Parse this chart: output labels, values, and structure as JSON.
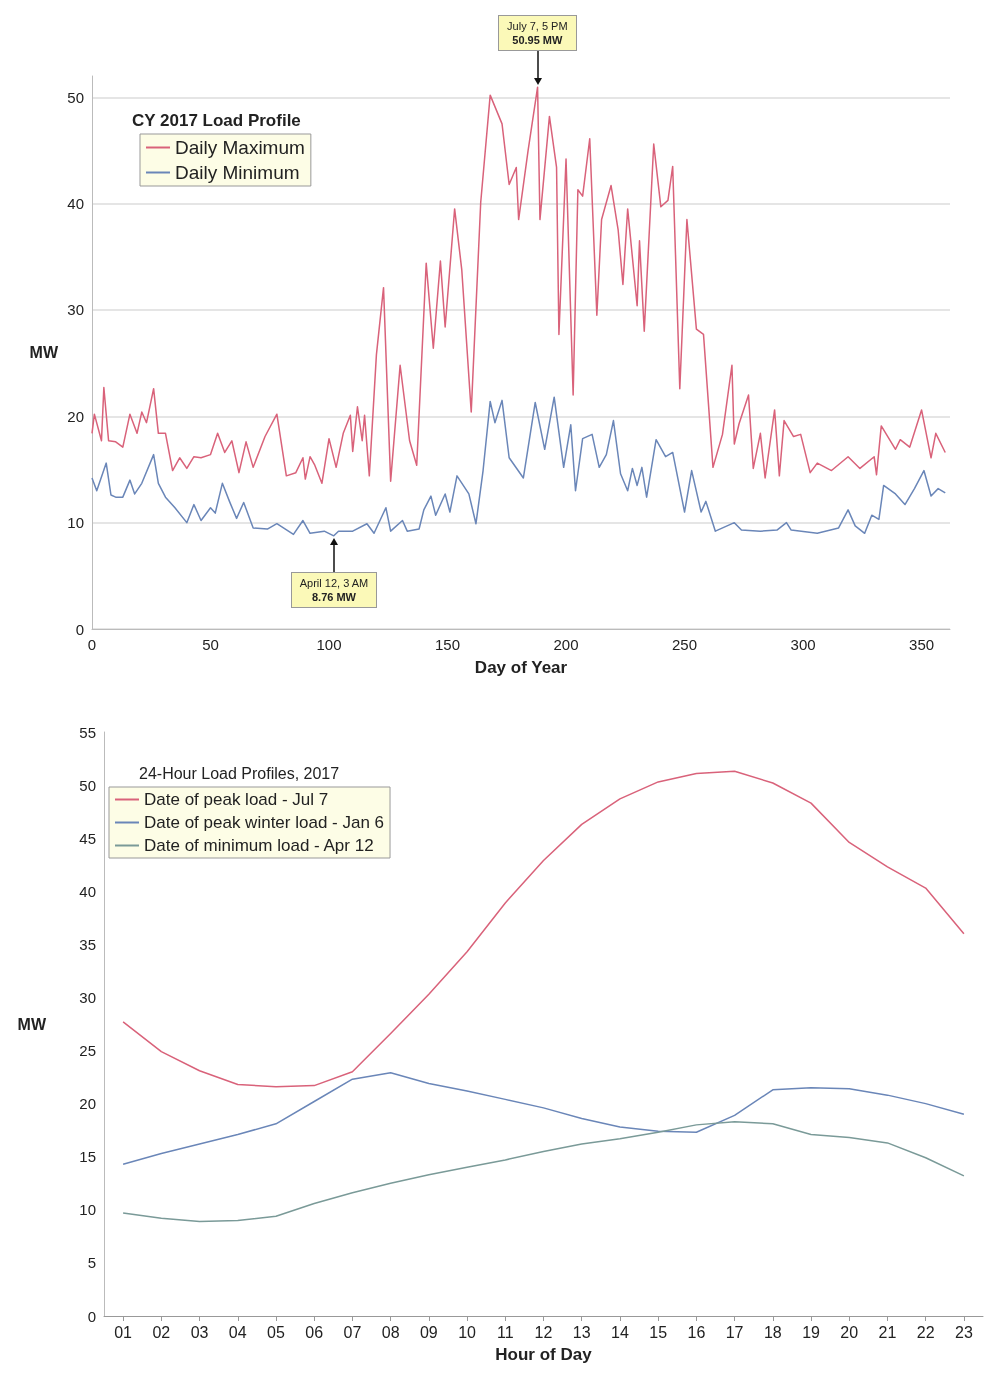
{
  "chart_data": [
    {
      "type": "line",
      "legend_title": "CY 2017 Load Profile",
      "xlabel": "Day of Year",
      "ylabel": "MW",
      "xlim": [
        0,
        362
      ],
      "xticks": [
        0,
        50,
        100,
        150,
        200,
        250,
        300,
        350
      ],
      "ylim": [
        0,
        52
      ],
      "yticks": [
        0,
        10,
        20,
        30,
        40,
        50
      ],
      "grid": "y",
      "legend": "top left",
      "marker": "none",
      "line_style": "solid",
      "annotations": [
        {
          "text": "July 7, 5 PM\n50.95 MW",
          "x": 188,
          "y": 50.95
        },
        {
          "text": "April 12, 3 AM\n8.76 MW",
          "x": 102,
          "y": 8.76
        }
      ],
      "series": [
        {
          "name": "Daily Maximum",
          "color": "#d9627a",
          "x": [
            0,
            1,
            4,
            5,
            7,
            10,
            13,
            16,
            19,
            21,
            23,
            26,
            28,
            31,
            34,
            37,
            40,
            43,
            46,
            50,
            53,
            56,
            59,
            62,
            65,
            68,
            73,
            78,
            82,
            86,
            89,
            90,
            92,
            94,
            97,
            100,
            103,
            106,
            109,
            110,
            112,
            114,
            115,
            117,
            120,
            123,
            126,
            130,
            134,
            137,
            141,
            144,
            147,
            149,
            153,
            156,
            160,
            164,
            168,
            173,
            176,
            179,
            180,
            184,
            188,
            189,
            193,
            196,
            197,
            200,
            203,
            205,
            207,
            210,
            213,
            215,
            219,
            222,
            224,
            226,
            230,
            231,
            233,
            237,
            240,
            243,
            245,
            248,
            251,
            255,
            258,
            262,
            266,
            270,
            271,
            273,
            277,
            279,
            282,
            284,
            288,
            290,
            292,
            296,
            299,
            303,
            306,
            312,
            319,
            324,
            330,
            331,
            333,
            339,
            341,
            345,
            350,
            354,
            356,
            360
          ],
          "values": [
            18.4,
            20.2,
            17.7,
            22.7,
            17.7,
            17.6,
            17.1,
            20.2,
            18.4,
            20.4,
            19.4,
            22.6,
            18.4,
            18.4,
            14.9,
            16.1,
            15.1,
            16.2,
            16.1,
            16.4,
            18.4,
            16.6,
            17.7,
            14.7,
            17.6,
            15.2,
            18.1,
            20.2,
            14.4,
            14.7,
            16.1,
            14.1,
            16.2,
            15.4,
            13.7,
            17.9,
            15.2,
            18.4,
            20.1,
            16.7,
            20.9,
            17.7,
            20.1,
            14.4,
            25.8,
            32.1,
            13.9,
            24.8,
            17.7,
            15.4,
            34.4,
            26.4,
            34.6,
            28.4,
            39.5,
            33.8,
            20.4,
            40.1,
            50.2,
            47.5,
            41.8,
            43.4,
            38.5,
            45,
            50.95,
            38.5,
            48.2,
            43.4,
            27.7,
            44.2,
            22,
            41.3,
            40.7,
            46.1,
            29.5,
            38.5,
            41.7,
            37.5,
            32.4,
            39.5,
            30.4,
            36.5,
            28,
            45.6,
            39.7,
            40.3,
            43.5,
            22.6,
            38.5,
            28.2,
            27.7,
            15.2,
            18.3,
            24.8,
            17.4,
            19.3,
            22,
            15.1,
            18.4,
            14.2,
            20.6,
            14.4,
            19.6,
            18.1,
            18.3,
            14.7,
            15.6,
            14.9,
            16.2,
            15.1,
            16.2,
            14.5,
            19.1,
            16.9,
            17.8,
            17.1,
            20.6,
            16.1,
            18.4,
            16.6
          ]
        },
        {
          "name": "Daily Minimum",
          "color": "#6a86b8",
          "x": [
            0,
            2,
            6,
            8,
            10,
            13,
            16,
            18,
            21,
            26,
            28,
            31,
            35,
            40,
            43,
            46,
            50,
            52,
            55,
            58,
            61,
            64,
            68,
            74,
            78,
            85,
            89,
            92,
            98,
            102,
            104,
            110,
            116,
            119,
            124,
            126,
            131,
            133,
            138,
            140,
            143,
            145,
            149,
            151,
            154,
            159,
            162,
            165,
            168,
            170,
            173,
            176,
            182,
            187,
            191,
            195,
            199,
            202,
            204,
            207,
            211,
            214,
            217,
            220,
            223,
            226,
            228,
            230,
            232,
            234,
            238,
            242,
            245,
            250,
            253,
            257,
            259,
            263,
            271,
            274,
            282,
            289,
            293,
            295,
            306,
            315,
            319,
            322,
            326,
            329,
            332,
            334,
            339,
            343,
            347,
            351,
            354,
            357,
            360
          ],
          "values": [
            14.2,
            13,
            15.6,
            12.6,
            12.4,
            12.4,
            14,
            12.7,
            13.7,
            16.4,
            13.7,
            12.4,
            11.4,
            10,
            11.7,
            10.2,
            11.4,
            10.9,
            13.7,
            12,
            10.4,
            11.9,
            9.5,
            9.4,
            9.9,
            8.9,
            10.2,
            9,
            9.2,
            8.76,
            9.2,
            9.2,
            9.9,
            9,
            11.4,
            9.2,
            10.2,
            9.2,
            9.4,
            11.2,
            12.5,
            10.7,
            12.7,
            11,
            14.4,
            12.7,
            9.9,
            14.9,
            21.4,
            19.4,
            21.5,
            16.1,
            14.2,
            21.3,
            16.9,
            21.8,
            15.2,
            19.2,
            13,
            17.9,
            18.3,
            15.2,
            16.4,
            19.6,
            14.6,
            13,
            15.1,
            13.5,
            15.2,
            12.4,
            17.8,
            16.2,
            16.6,
            11,
            14.9,
            11,
            12,
            9.2,
            10,
            9.3,
            9.2,
            9.3,
            10,
            9.3,
            9,
            9.5,
            11.2,
            9.7,
            9,
            10.7,
            10.3,
            13.5,
            12.7,
            11.7,
            13.2,
            14.9,
            12.5,
            13.2,
            12.8
          ]
        }
      ]
    },
    {
      "type": "line",
      "legend_title": "24-Hour Load Profiles, 2017",
      "xlabel": "Hour of Day",
      "ylabel": "MW",
      "ylim": [
        0,
        55
      ],
      "yticks": [
        0,
        5,
        10,
        15,
        20,
        25,
        30,
        35,
        40,
        45,
        50,
        55
      ],
      "grid": false,
      "legend": "top left",
      "marker": "none",
      "line_style": "solid",
      "categories": [
        "01",
        "02",
        "03",
        "04",
        "05",
        "06",
        "07",
        "08",
        "09",
        "10",
        "11",
        "12",
        "13",
        "14",
        "15",
        "16",
        "17",
        "18",
        "19",
        "20",
        "21",
        "22",
        "23"
      ],
      "series": [
        {
          "name": "Date of peak load - Jul 7",
          "color": "#d9627a",
          "values": [
            27.7,
            24.9,
            23.1,
            21.8,
            21.6,
            21.7,
            23,
            26.6,
            30.3,
            34.3,
            38.9,
            42.9,
            46.3,
            48.7,
            50.3,
            51.1,
            51.3,
            50.2,
            48.3,
            44.6,
            42.3,
            40.3,
            36
          ]
        },
        {
          "name": "Date of peak winter load - Jan 6",
          "color": "#6a86b8",
          "values": [
            14.3,
            15.3,
            16.2,
            17.1,
            18.1,
            20.2,
            22.3,
            22.9,
            21.9,
            21.2,
            20.4,
            19.6,
            18.6,
            17.8,
            17.4,
            17.3,
            18.9,
            21.3,
            21.5,
            21.4,
            20.8,
            20,
            19
          ]
        },
        {
          "name": "Date of minimum load - Apr 12",
          "color": "#7a9a98",
          "values": [
            9.7,
            9.2,
            8.9,
            9,
            9.4,
            10.6,
            11.6,
            12.5,
            13.3,
            14,
            14.7,
            15.5,
            16.2,
            16.7,
            17.3,
            18,
            18.3,
            18.1,
            17.1,
            16.8,
            16.3,
            14.9,
            13.2
          ]
        }
      ]
    }
  ]
}
